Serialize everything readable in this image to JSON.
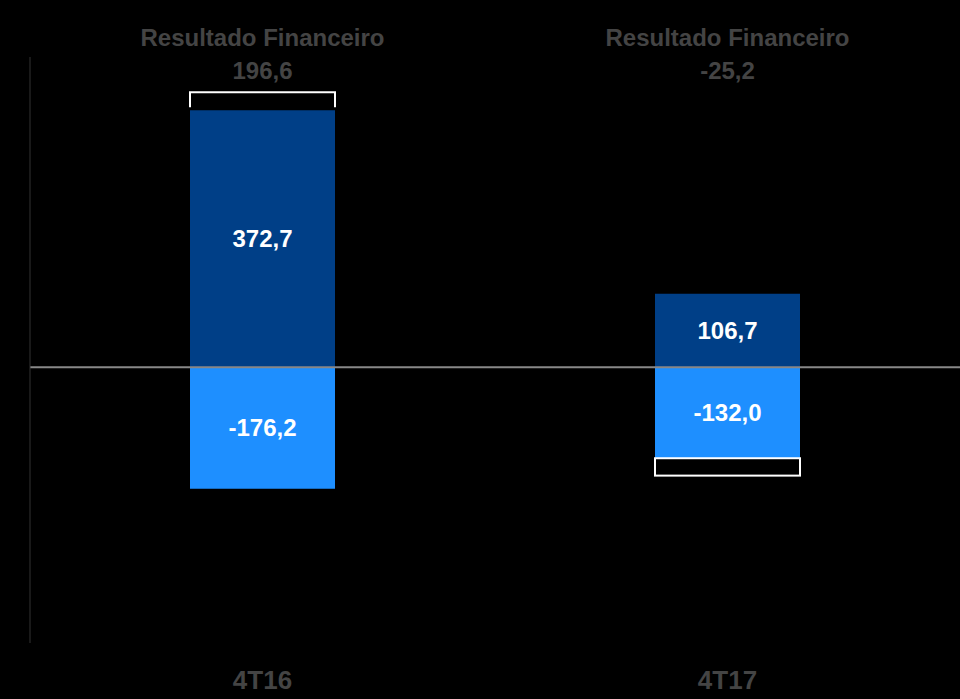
{
  "chart_data": {
    "type": "bar",
    "categories": [
      "4T16",
      "4T17"
    ],
    "series": [
      {
        "values": [
          372.7,
          106.7
        ],
        "value_labels": [
          "372,7",
          "106,7"
        ],
        "color": "#003f87"
      },
      {
        "values": [
          -176.2,
          -132.0
        ],
        "value_labels": [
          "-176,2",
          "-132,0"
        ],
        "color": "#1e8fff"
      }
    ],
    "totals_title": "Resultado Financeiro",
    "totals": [
      196.6,
      -25.2
    ],
    "totals_labels": [
      "196,6",
      "-25,2"
    ],
    "ylim": [
      -400,
      450
    ],
    "yticks": [
      0
    ],
    "stacked": true,
    "data_labels": true,
    "tick_labels": "x"
  }
}
